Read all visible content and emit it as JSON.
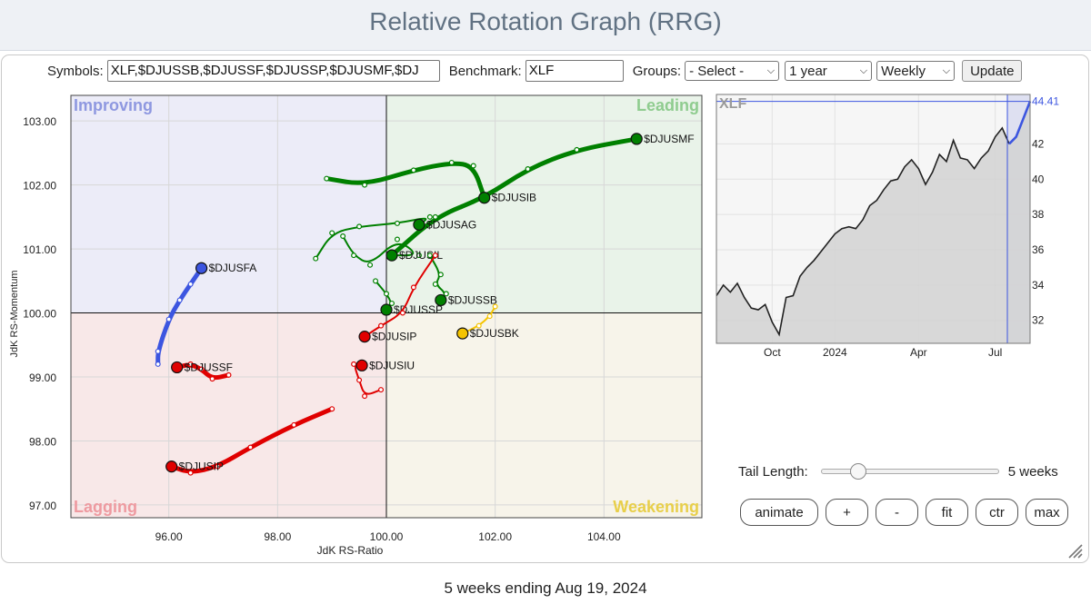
{
  "page": {
    "title": "Relative Rotation Graph (RRG)",
    "footer": "5 weeks ending Aug 19, 2024"
  },
  "controls": {
    "symbols_label": "Symbols:",
    "symbols_value": "XLF,$DJUSSB,$DJUSSF,$DJUSSP,$DJUSMF,$DJ",
    "benchmark_label": "Benchmark:",
    "benchmark_value": "XLF",
    "groups_label": "Groups:",
    "groups_value": "- Select -",
    "period_value": "1 year",
    "frequency_value": "Weekly",
    "update_label": "Update"
  },
  "tail": {
    "label": "Tail Length:",
    "value_text": "5 weeks",
    "weeks": 5,
    "max_weeks": 52
  },
  "buttons": {
    "animate": "animate",
    "plus": "+",
    "minus": "-",
    "fit": "fit",
    "ctr": "ctr",
    "max": "max"
  },
  "chart_data": [
    {
      "type": "scatter",
      "subtype": "rrg",
      "xlabel": "JdK RS-Ratio",
      "ylabel": "JdK RS-Momentum",
      "xlim": [
        94.2,
        105.8
      ],
      "ylim": [
        96.8,
        103.4
      ],
      "xticks": [
        96,
        98,
        100,
        102,
        104
      ],
      "yticks": [
        97,
        98,
        99,
        100,
        101,
        102,
        103
      ],
      "tick_format_decimals": 2,
      "center": [
        100,
        100
      ],
      "quadrants": [
        {
          "name": "Improving",
          "position": "top-left",
          "fill": "#ececf8",
          "color": "#8e98e0"
        },
        {
          "name": "Leading",
          "position": "top-right",
          "fill": "#e9f3e9",
          "color": "#8fcc8f"
        },
        {
          "name": "Lagging",
          "position": "bottom-left",
          "fill": "#f8e8e8",
          "color": "#ee9aa0"
        },
        {
          "name": "Weakening",
          "position": "bottom-right",
          "fill": "#f7f4ea",
          "color": "#e8cf4a"
        }
      ],
      "series": [
        {
          "name": "$DJUSMF",
          "color": "#008000",
          "thick": true,
          "points": [
            [
              100.1,
              100.9
            ],
            [
              100.9,
              101.5
            ],
            [
              101.8,
              101.8
            ],
            [
              102.6,
              102.25
            ],
            [
              103.5,
              102.55
            ],
            [
              104.6,
              102.72
            ]
          ]
        },
        {
          "name": "$DJUSIB",
          "color": "#008000",
          "thick": true,
          "points": [
            [
              98.9,
              102.1
            ],
            [
              99.6,
              102.0
            ],
            [
              100.5,
              102.23
            ],
            [
              101.2,
              102.35
            ],
            [
              101.6,
              102.3
            ],
            [
              101.8,
              101.8
            ]
          ]
        },
        {
          "name": "$DJUSAG",
          "color": "#008000",
          "thick": false,
          "points": [
            [
              98.7,
              100.85
            ],
            [
              99.0,
              101.25
            ],
            [
              99.5,
              101.35
            ],
            [
              100.2,
              101.4
            ],
            [
              100.8,
              101.5
            ],
            [
              100.6,
              101.38
            ]
          ]
        },
        {
          "name": "$DJUSIL",
          "color": "#008000",
          "thick": false,
          "points": [
            [
              99.2,
              101.2
            ],
            [
              99.4,
              100.9
            ],
            [
              99.7,
              100.75
            ],
            [
              100.2,
              101.15
            ],
            [
              100.6,
              100.9
            ],
            [
              100.1,
              100.9
            ]
          ]
        },
        {
          "name": "$DJUSSB",
          "color": "#008000",
          "thick": false,
          "points": [
            [
              100.8,
              100.9
            ],
            [
              101.0,
              100.6
            ],
            [
              100.9,
              100.45
            ],
            [
              101.1,
              100.3
            ],
            [
              101.0,
              100.2
            ]
          ]
        },
        {
          "name": "$DJUSSP",
          "color": "#008000",
          "thick": false,
          "points": [
            [
              99.8,
              100.5
            ],
            [
              100.0,
              100.3
            ],
            [
              100.1,
              100.15
            ],
            [
              100.0,
              100.05
            ]
          ]
        },
        {
          "name": "$DJUSBK",
          "color": "#f5c400",
          "thick": false,
          "points": [
            [
              102.0,
              100.1
            ],
            [
              101.9,
              99.95
            ],
            [
              101.7,
              99.8
            ],
            [
              101.4,
              99.68
            ]
          ]
        },
        {
          "name": "$DJUSFA",
          "color": "#3c55e0",
          "thick": true,
          "points": [
            [
              95.8,
              99.2
            ],
            [
              95.8,
              99.4
            ],
            [
              96.0,
              99.9
            ],
            [
              96.2,
              100.2
            ],
            [
              96.4,
              100.45
            ],
            [
              96.6,
              100.7
            ]
          ]
        },
        {
          "name": "$DJUSSF",
          "color": "#e00000",
          "thick": true,
          "points": [
            [
              97.1,
              99.03
            ],
            [
              96.8,
              98.97
            ],
            [
              96.6,
              99.12
            ],
            [
              96.4,
              99.2
            ],
            [
              96.15,
              99.15
            ]
          ]
        },
        {
          "name": "$DJUSIP",
          "color": "#e00000",
          "thick": false,
          "points": [
            [
              100.9,
              100.9
            ],
            [
              100.5,
              100.4
            ],
            [
              100.3,
              100.0
            ],
            [
              99.9,
              99.8
            ],
            [
              99.6,
              99.63
            ]
          ]
        },
        {
          "name": "$DJUSIU",
          "color": "#e00000",
          "thick": false,
          "points": [
            [
              99.9,
              98.8
            ],
            [
              99.6,
              98.7
            ],
            [
              99.5,
              98.95
            ],
            [
              99.4,
              99.2
            ],
            [
              99.55,
              99.18
            ]
          ]
        },
        {
          "name": "$DJUSIP",
          "color": "#e00000",
          "thick": true,
          "points": [
            [
              99.0,
              98.5
            ],
            [
              98.3,
              98.25
            ],
            [
              97.5,
              97.9
            ],
            [
              96.9,
              97.6
            ],
            [
              96.4,
              97.5
            ],
            [
              96.05,
              97.6
            ]
          ]
        }
      ]
    },
    {
      "type": "area",
      "title": "XLF",
      "xticks": [
        "Oct",
        "2024",
        "Apr",
        "Jul"
      ],
      "yticks": [
        32,
        34,
        36,
        38,
        40,
        42
      ],
      "ylim": [
        30.7,
        44.8
      ],
      "last_value": "44.41",
      "highlight_from_index": 42,
      "color": "#222222",
      "highlight_color": "#3c55e0",
      "values": [
        33.4,
        34.0,
        33.6,
        34.1,
        33.3,
        32.7,
        32.6,
        32.9,
        31.9,
        31.2,
        33.3,
        33.4,
        34.5,
        35.0,
        35.4,
        35.9,
        36.4,
        36.9,
        37.2,
        37.3,
        37.2,
        37.7,
        38.5,
        38.8,
        39.4,
        39.9,
        40.0,
        40.7,
        41.1,
        40.6,
        39.7,
        40.4,
        41.4,
        41.0,
        42.2,
        41.2,
        41.1,
        40.6,
        41.2,
        41.6,
        42.4,
        42.9,
        42.0,
        42.4,
        43.4,
        44.41
      ]
    }
  ]
}
